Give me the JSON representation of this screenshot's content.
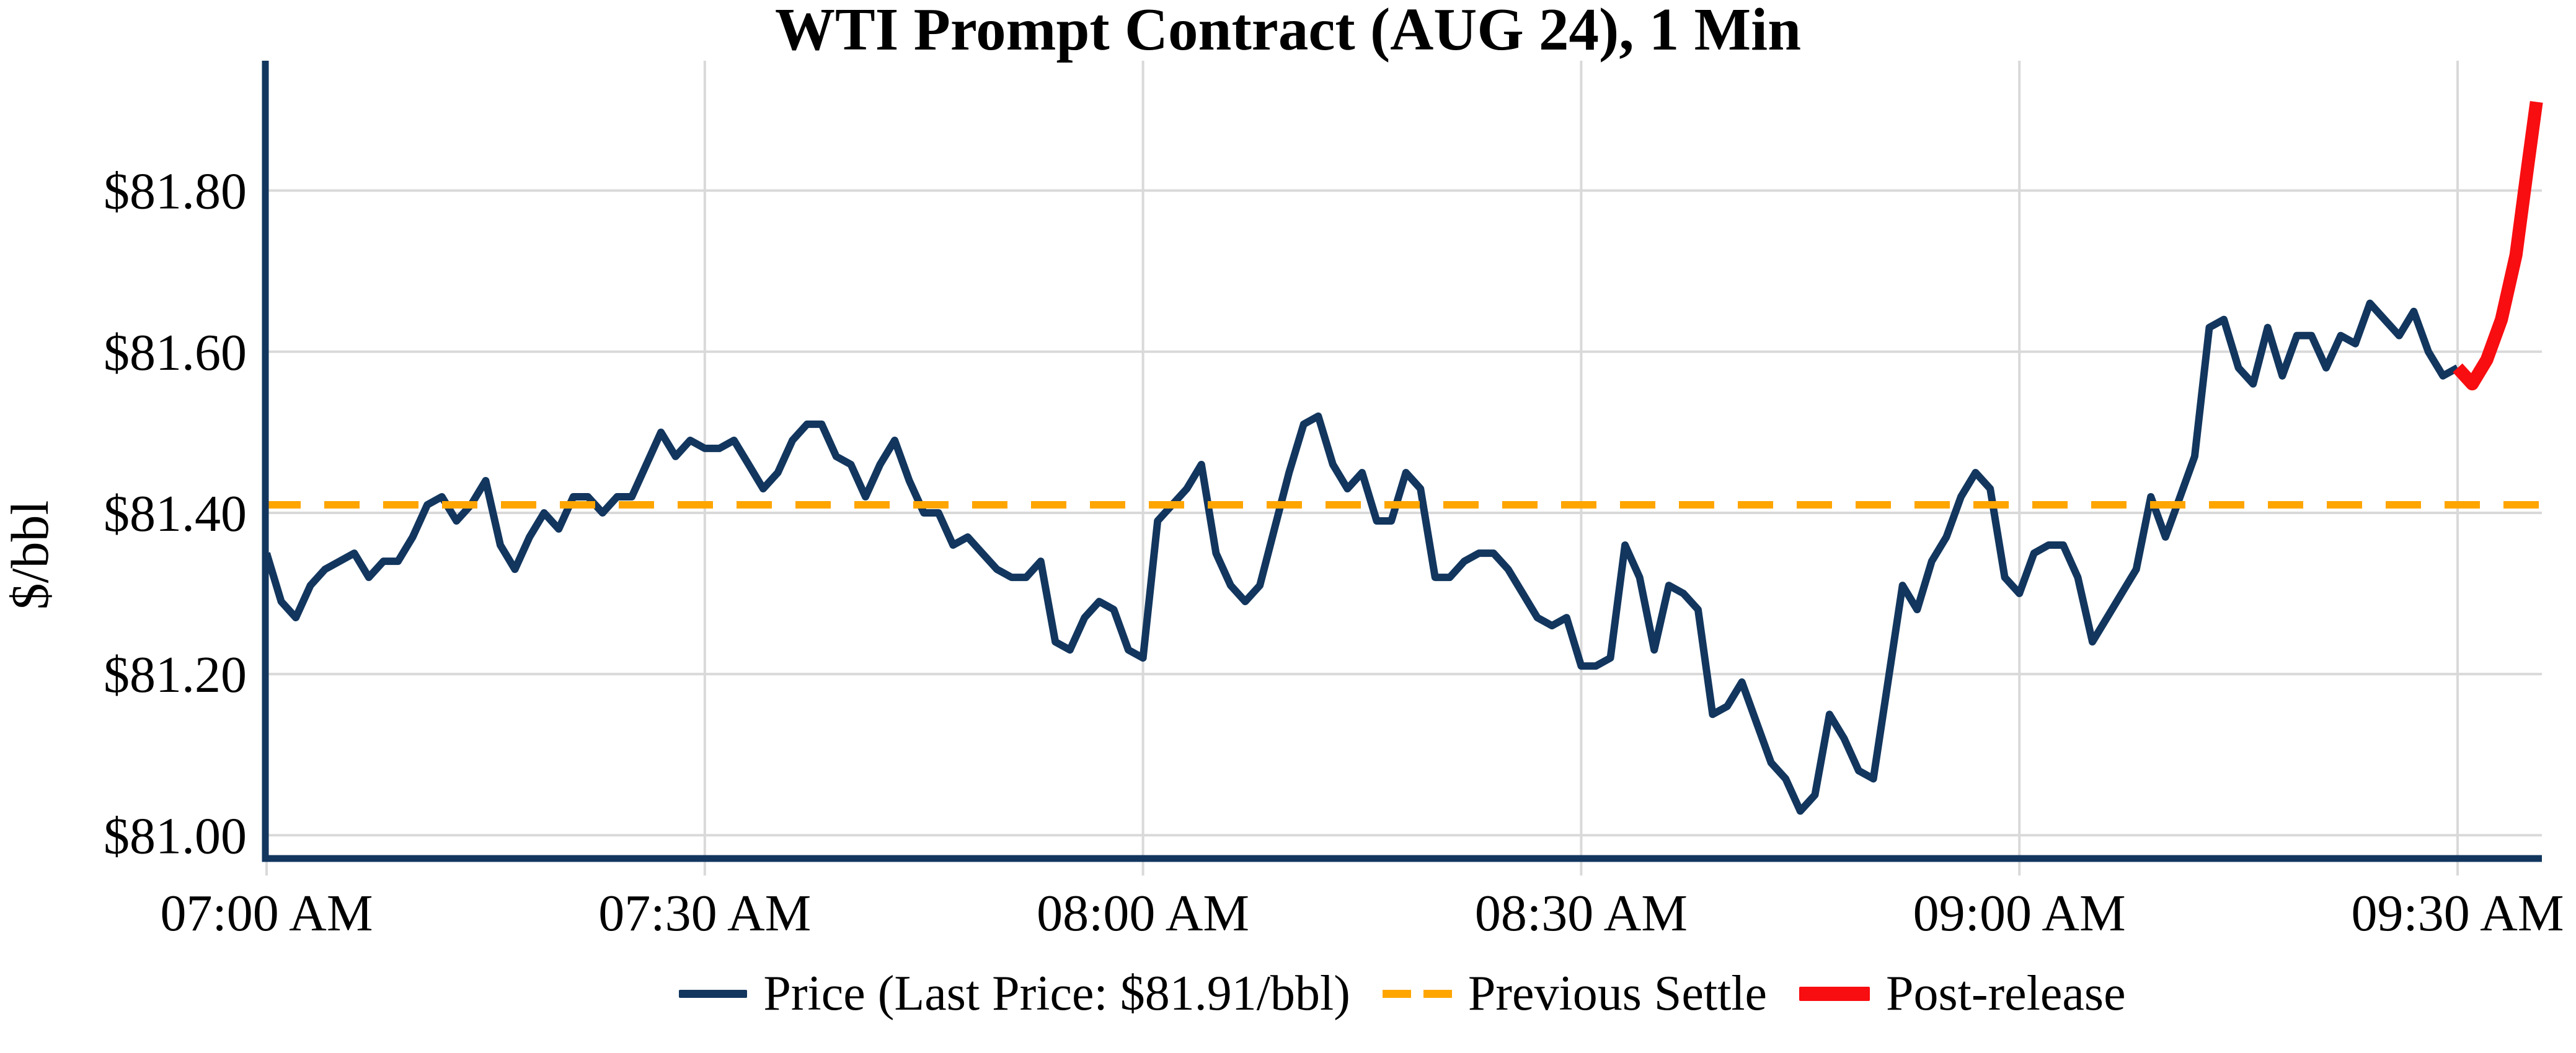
{
  "figure": {
    "title": "WTI Prompt Contract (AUG 24), 1 Min"
  },
  "chart_data": {
    "type": "line",
    "title": "WTI Prompt Contract (AUG 24), 1 Min",
    "xlabel": "",
    "ylabel": "$/bbl",
    "grid": true,
    "legend_position": "lower center",
    "last_price": "$81.91/bbl",
    "previous_settle_value": 81.41,
    "y_range": [
      80.97,
      81.96
    ],
    "x_range_minutes_from_0700": [
      -0.3,
      155.8
    ],
    "x_ticks": [
      {
        "t": 0,
        "label": "07:00 AM"
      },
      {
        "t": 30,
        "label": "07:30 AM"
      },
      {
        "t": 60,
        "label": "08:00 AM"
      },
      {
        "t": 90,
        "label": "08:30 AM"
      },
      {
        "t": 120,
        "label": "09:00 AM"
      },
      {
        "t": 150,
        "label": "09:30 AM"
      }
    ],
    "y_ticks": [
      {
        "v": 81.0,
        "label": "$81.00"
      },
      {
        "v": 81.2,
        "label": "$81.20"
      },
      {
        "v": 81.4,
        "label": "$81.40"
      },
      {
        "v": 81.6,
        "label": "$81.60"
      },
      {
        "v": 81.8,
        "label": "$81.80"
      }
    ],
    "series": [
      {
        "name": "Price (Last Price: $81.91/bbl)",
        "kind": "line",
        "color": "#12365e",
        "stroke_width": 12,
        "points": [
          [
            0,
            81.35
          ],
          [
            1,
            81.29
          ],
          [
            2,
            81.27
          ],
          [
            3,
            81.31
          ],
          [
            4,
            81.33
          ],
          [
            5,
            81.34
          ],
          [
            6,
            81.35
          ],
          [
            7,
            81.32
          ],
          [
            8,
            81.34
          ],
          [
            9,
            81.34
          ],
          [
            10,
            81.37
          ],
          [
            11,
            81.41
          ],
          [
            12,
            81.42
          ],
          [
            13,
            81.39
          ],
          [
            14,
            81.41
          ],
          [
            15,
            81.44
          ],
          [
            16,
            81.36
          ],
          [
            17,
            81.33
          ],
          [
            18,
            81.37
          ],
          [
            19,
            81.4
          ],
          [
            20,
            81.38
          ],
          [
            21,
            81.42
          ],
          [
            22,
            81.42
          ],
          [
            23,
            81.4
          ],
          [
            24,
            81.42
          ],
          [
            25,
            81.42
          ],
          [
            26,
            81.46
          ],
          [
            27,
            81.5
          ],
          [
            28,
            81.47
          ],
          [
            29,
            81.49
          ],
          [
            30,
            81.48
          ],
          [
            31,
            81.48
          ],
          [
            32,
            81.49
          ],
          [
            33,
            81.46
          ],
          [
            34,
            81.43
          ],
          [
            35,
            81.45
          ],
          [
            36,
            81.49
          ],
          [
            37,
            81.51
          ],
          [
            38,
            81.51
          ],
          [
            39,
            81.47
          ],
          [
            40,
            81.46
          ],
          [
            41,
            81.42
          ],
          [
            42,
            81.46
          ],
          [
            43,
            81.49
          ],
          [
            44,
            81.44
          ],
          [
            45,
            81.4
          ],
          [
            46,
            81.4
          ],
          [
            47,
            81.36
          ],
          [
            48,
            81.37
          ],
          [
            49,
            81.35
          ],
          [
            50,
            81.33
          ],
          [
            51,
            81.32
          ],
          [
            52,
            81.32
          ],
          [
            53,
            81.34
          ],
          [
            54,
            81.24
          ],
          [
            55,
            81.23
          ],
          [
            56,
            81.27
          ],
          [
            57,
            81.29
          ],
          [
            58,
            81.28
          ],
          [
            59,
            81.23
          ],
          [
            60,
            81.22
          ],
          [
            61,
            81.39
          ],
          [
            62,
            81.41
          ],
          [
            63,
            81.43
          ],
          [
            64,
            81.46
          ],
          [
            65,
            81.35
          ],
          [
            66,
            81.31
          ],
          [
            67,
            81.29
          ],
          [
            68,
            81.31
          ],
          [
            69,
            81.38
          ],
          [
            70,
            81.45
          ],
          [
            71,
            81.51
          ],
          [
            72,
            81.52
          ],
          [
            73,
            81.46
          ],
          [
            74,
            81.43
          ],
          [
            75,
            81.45
          ],
          [
            76,
            81.39
          ],
          [
            77,
            81.39
          ],
          [
            78,
            81.45
          ],
          [
            79,
            81.43
          ],
          [
            80,
            81.32
          ],
          [
            81,
            81.32
          ],
          [
            82,
            81.34
          ],
          [
            83,
            81.35
          ],
          [
            84,
            81.35
          ],
          [
            85,
            81.33
          ],
          [
            86,
            81.3
          ],
          [
            87,
            81.27
          ],
          [
            88,
            81.26
          ],
          [
            89,
            81.27
          ],
          [
            90,
            81.21
          ],
          [
            91,
            81.21
          ],
          [
            92,
            81.22
          ],
          [
            93,
            81.36
          ],
          [
            94,
            81.32
          ],
          [
            95,
            81.23
          ],
          [
            96,
            81.31
          ],
          [
            97,
            81.3
          ],
          [
            98,
            81.28
          ],
          [
            99,
            81.15
          ],
          [
            100,
            81.16
          ],
          [
            101,
            81.19
          ],
          [
            102,
            81.14
          ],
          [
            103,
            81.09
          ],
          [
            104,
            81.07
          ],
          [
            105,
            81.03
          ],
          [
            106,
            81.05
          ],
          [
            107,
            81.15
          ],
          [
            108,
            81.12
          ],
          [
            109,
            81.08
          ],
          [
            110,
            81.07
          ],
          [
            111,
            81.19
          ],
          [
            112,
            81.31
          ],
          [
            113,
            81.28
          ],
          [
            114,
            81.34
          ],
          [
            115,
            81.37
          ],
          [
            116,
            81.42
          ],
          [
            117,
            81.45
          ],
          [
            118,
            81.43
          ],
          [
            119,
            81.32
          ],
          [
            120,
            81.3
          ],
          [
            121,
            81.35
          ],
          [
            122,
            81.36
          ],
          [
            123,
            81.36
          ],
          [
            124,
            81.32
          ],
          [
            125,
            81.24
          ],
          [
            126,
            81.27
          ],
          [
            127,
            81.3
          ],
          [
            128,
            81.33
          ],
          [
            129,
            81.42
          ],
          [
            130,
            81.37
          ],
          [
            131,
            81.42
          ],
          [
            132,
            81.47
          ],
          [
            133,
            81.63
          ],
          [
            134,
            81.64
          ],
          [
            135,
            81.58
          ],
          [
            136,
            81.56
          ],
          [
            137,
            81.63
          ],
          [
            138,
            81.57
          ],
          [
            139,
            81.62
          ],
          [
            140,
            81.62
          ],
          [
            141,
            81.58
          ],
          [
            142,
            81.62
          ],
          [
            143,
            81.61
          ],
          [
            144,
            81.66
          ],
          [
            145,
            81.64
          ],
          [
            146,
            81.62
          ],
          [
            147,
            81.65
          ],
          [
            148,
            81.6
          ],
          [
            149,
            81.57
          ],
          [
            150,
            81.58
          ]
        ]
      },
      {
        "name": "Previous Settle",
        "kind": "hline",
        "color": "#ffa500",
        "stroke_width": 12,
        "dash": [
          57,
          38
        ],
        "value": 81.41
      },
      {
        "name": "Post-release",
        "kind": "line",
        "color": "#f80d10",
        "stroke_width": 21,
        "points": [
          [
            150,
            81.58
          ],
          [
            151,
            81.56
          ],
          [
            152,
            81.59
          ],
          [
            153,
            81.64
          ],
          [
            154,
            81.72
          ],
          [
            154.8,
            81.83
          ],
          [
            155.4,
            81.91
          ]
        ]
      }
    ]
  },
  "style": {
    "gridline_color": "#d9d9d9",
    "spine_color": "#12365e",
    "tick_label_color": "#000000",
    "background_color": "#ffffff"
  }
}
